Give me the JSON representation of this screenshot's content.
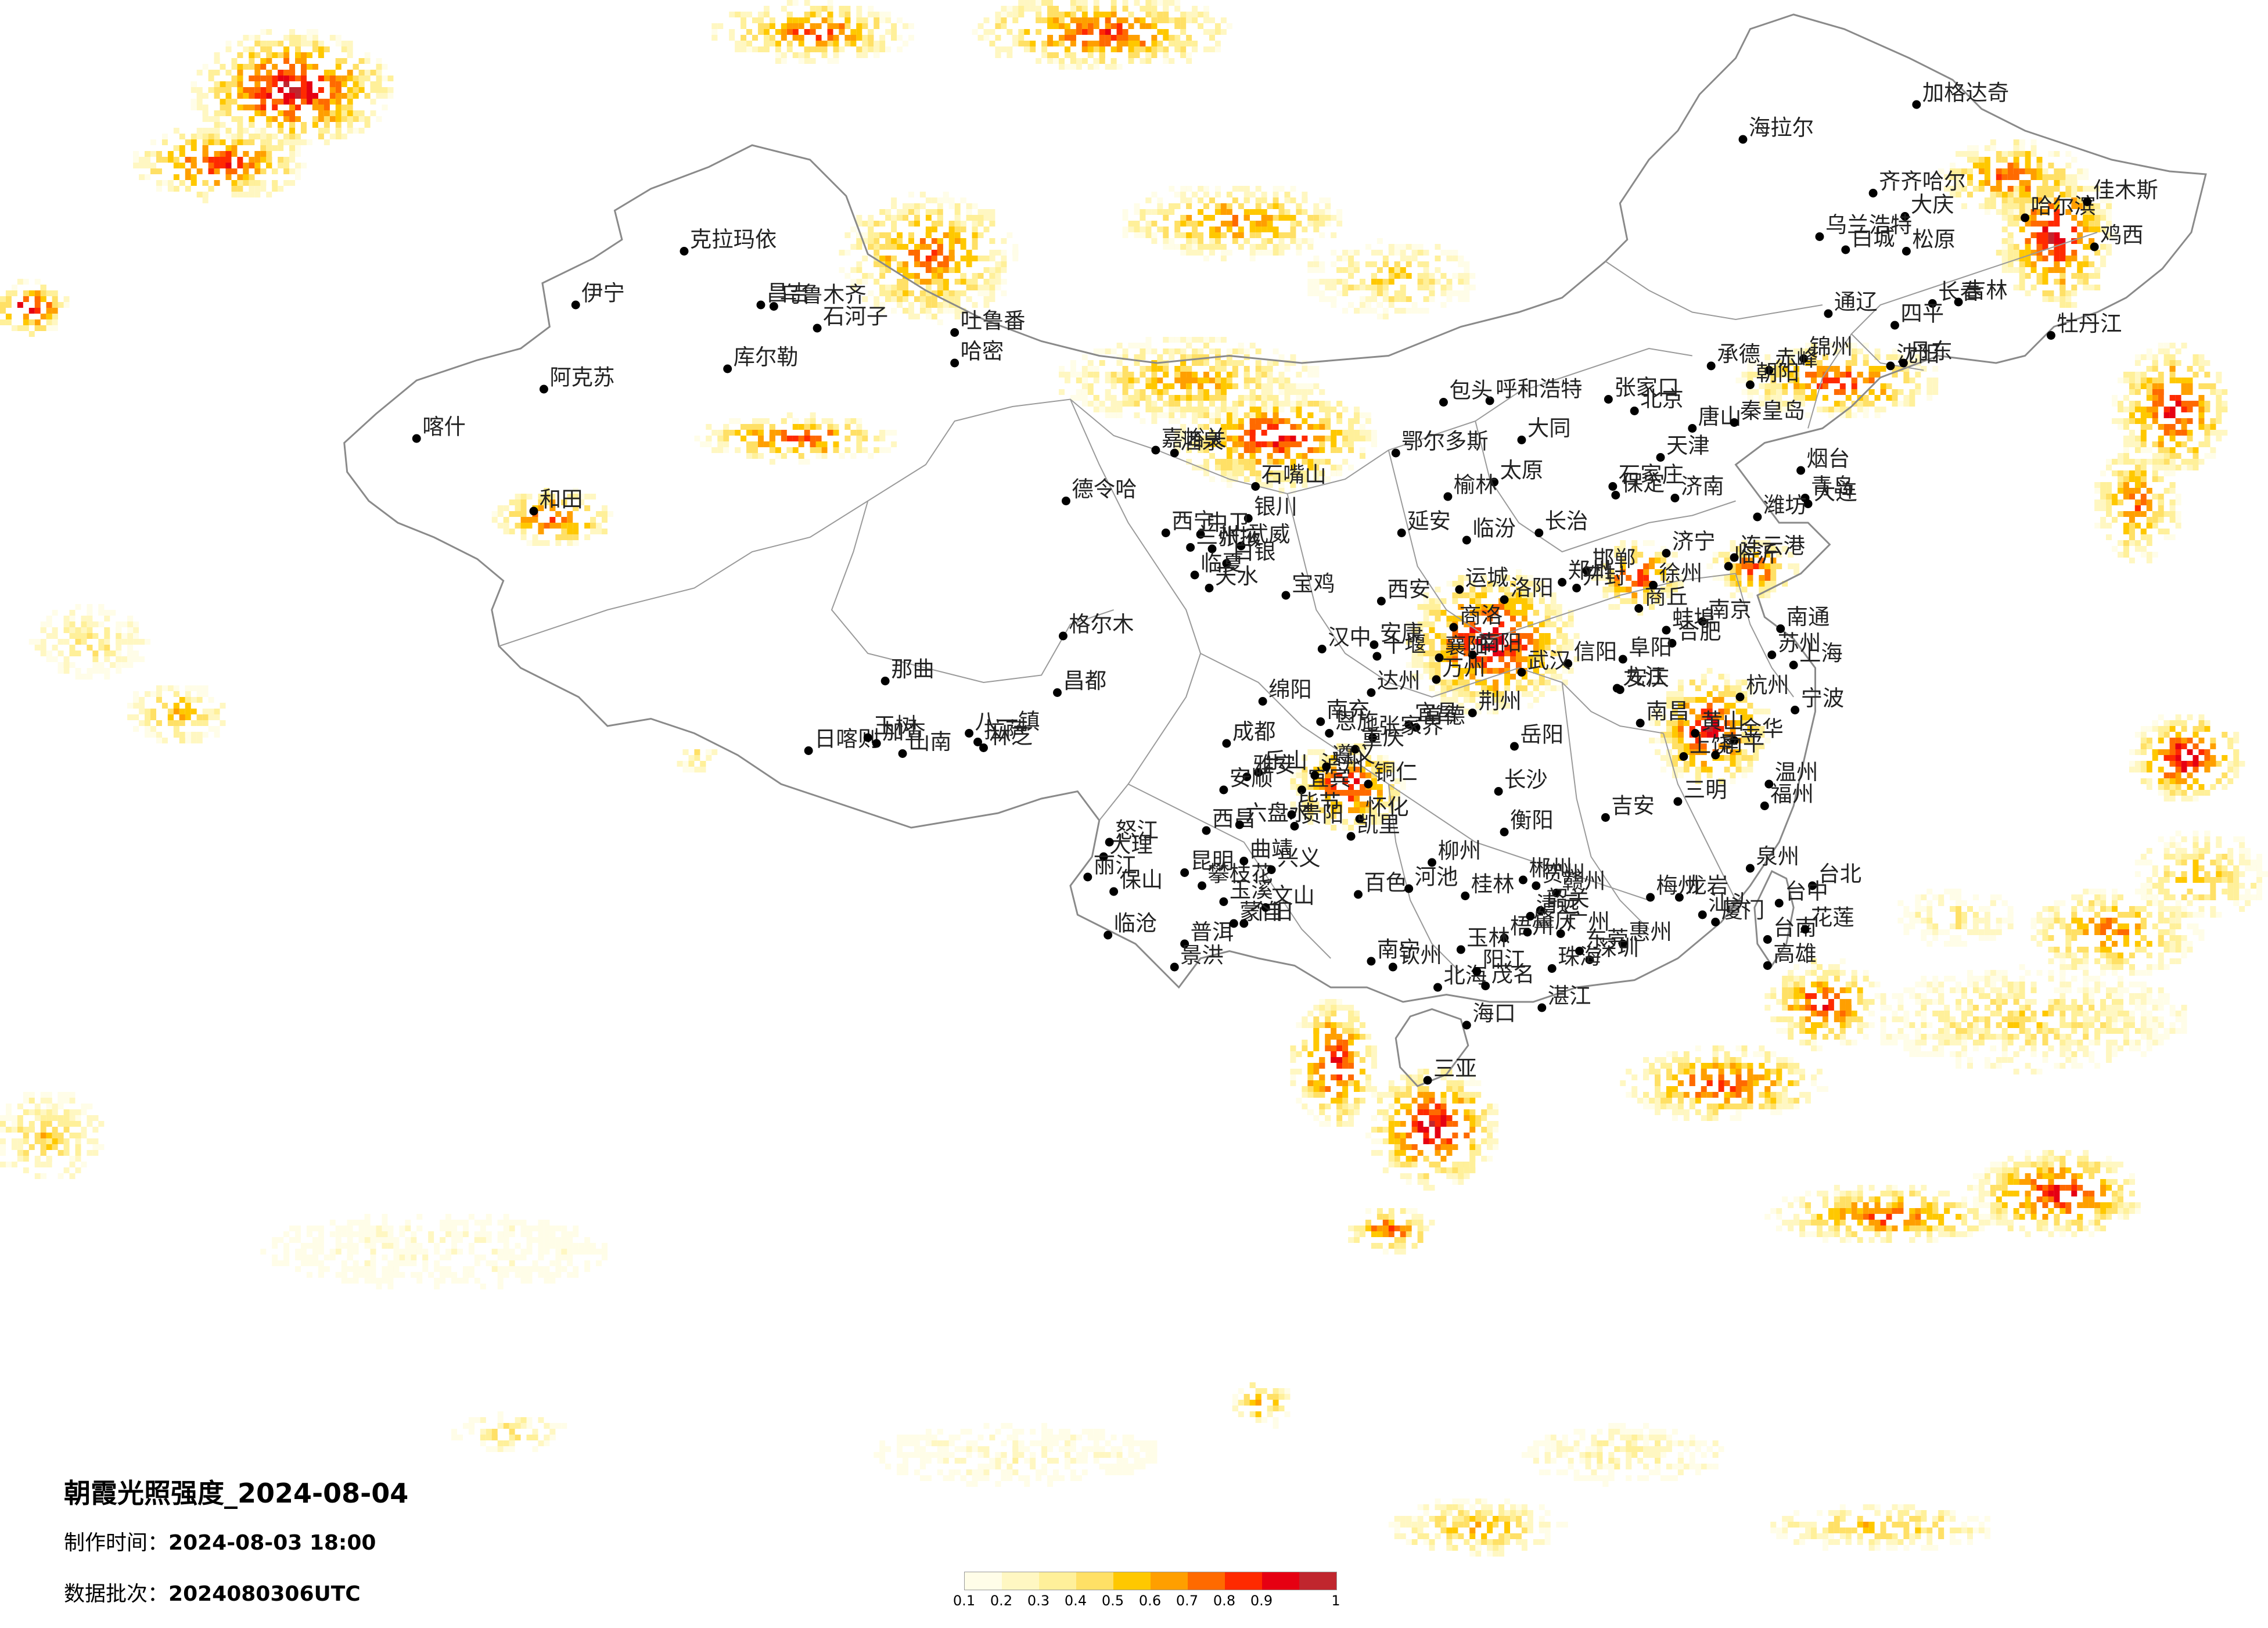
{
  "title": "朝霞光照强度_2024-08-04",
  "meta": [
    {
      "label": "制作时间：",
      "value": "2024-08-03 18:00"
    },
    {
      "label": "数据批次：",
      "value": "2024080306UTC"
    }
  ],
  "legend": {
    "ticks": [
      "0.1",
      "0.2",
      "0.3",
      "0.4",
      "0.5",
      "0.6",
      "0.7",
      "0.8",
      "0.9",
      "1"
    ],
    "colors": [
      "#fffde8",
      "#fff7c2",
      "#fff09a",
      "#ffe066",
      "#ffc800",
      "#ff9f00",
      "#ff6a00",
      "#ff2a00",
      "#e60012",
      "#c0262e"
    ]
  },
  "cities": [
    "克拉玛依",
    "伊宁",
    "阿克苏",
    "和田",
    "喀什",
    "昌吉",
    "乌鲁木齐",
    "石河子",
    "吐鲁番",
    "库尔勒",
    "哈密",
    "嘉峪关",
    "酒泉",
    "德令哈",
    "格尔木",
    "拉萨",
    "日喀则",
    "林芝",
    "那曲",
    "昌都",
    "玉树",
    "八一镇",
    "山南",
    "加查",
    "海拉尔",
    "加格达奇",
    "齐齐哈尔",
    "大庆",
    "哈尔滨",
    "佳木斯",
    "鸡西",
    "牡丹江",
    "乌兰浩特",
    "白城",
    "松原",
    "长春",
    "吉林",
    "通辽",
    "四平",
    "沈阳",
    "大连",
    "丹东",
    "锦州",
    "赤峰",
    "朝阳",
    "承德",
    "呼和浩特",
    "包头",
    "鄂尔多斯",
    "银川",
    "石嘴山",
    "中卫",
    "西宁",
    "兰州",
    "天水",
    "张掖",
    "武威",
    "白银",
    "临夏",
    "北京",
    "天津",
    "石家庄",
    "张家口",
    "唐山",
    "秦皇岛",
    "保定",
    "邯郸",
    "太原",
    "大同",
    "长治",
    "临汾",
    "运城",
    "济南",
    "青岛",
    "烟台",
    "潍坊",
    "临沂",
    "济宁",
    "郑州",
    "洛阳",
    "开封",
    "南阳",
    "信阳",
    "商丘",
    "西安",
    "延安",
    "榆林",
    "宝鸡",
    "汉中",
    "安康",
    "商洛",
    "武汉",
    "宜昌",
    "襄阳",
    "十堰",
    "荆州",
    "恩施",
    "长沙",
    "岳阳",
    "常德",
    "衡阳",
    "郴州",
    "怀化",
    "张家界",
    "南京",
    "徐州",
    "连云港",
    "南通",
    "苏州",
    "上海",
    "杭州",
    "宁波",
    "温州",
    "金华",
    "合肥",
    "阜阳",
    "蚌埠",
    "安庆",
    "黄山",
    "南昌",
    "九江",
    "赣州",
    "吉安",
    "上饶",
    "福州",
    "厦门",
    "泉州",
    "三明",
    "南平",
    "龙岩",
    "成都",
    "绵阳",
    "南充",
    "达州",
    "宜宾",
    "泸州",
    "乐山",
    "西昌",
    "雅安",
    "攀枝花",
    "重庆",
    "万州",
    "贵阳",
    "遵义",
    "六盘水",
    "毕节",
    "铜仁",
    "凯里",
    "兴义",
    "安顺",
    "昆明",
    "大理",
    "丽江",
    "曲靖",
    "玉溪",
    "保山",
    "普洱",
    "临沧",
    "景洪",
    "蒙自",
    "文山",
    "个旧",
    "怒江",
    "南宁",
    "桂林",
    "柳州",
    "梧州",
    "玉林",
    "百色",
    "河池",
    "北海",
    "钦州",
    "贺州",
    "广州",
    "深圳",
    "珠海",
    "汕头",
    "湛江",
    "茂名",
    "韶关",
    "梅州",
    "惠州",
    "东莞",
    "阳江",
    "清远",
    "肇庆",
    "海口",
    "三亚",
    "台北",
    "台中",
    "台南",
    "高雄",
    "花莲"
  ]
}
